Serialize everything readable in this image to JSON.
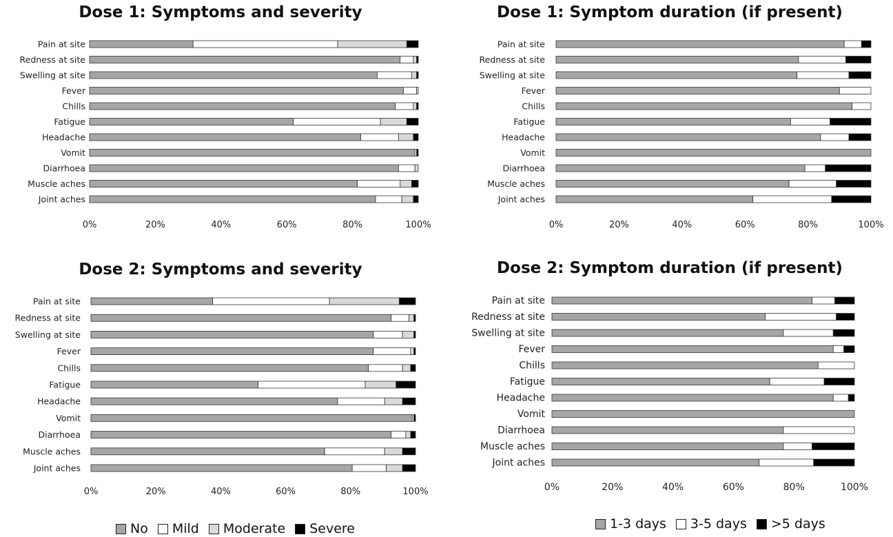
{
  "colors": {
    "No": "#a6a6a6",
    "Mild": "#ffffff",
    "Moderate": "#d9d9d9",
    "Severe": "#000000",
    "1-3 days": "#a6a6a6",
    "3-5 days": "#ffffff",
    ">5 days": "#000000"
  },
  "legends": {
    "severity": [
      "No",
      "Mild",
      "Moderate",
      "Severe"
    ],
    "duration": [
      "1-3 days",
      "3-5 days",
      ">5 days"
    ]
  },
  "chart_data": [
    {
      "id": "d1-severity",
      "type": "bar",
      "orientation": "horizontal",
      "stacked": true,
      "title": "Dose 1: Symptoms and severity",
      "categories": [
        "Pain at site",
        "Redness at site",
        "Swelling at site",
        "Fever",
        "Chills",
        "Fatigue",
        "Headache",
        "Vomit",
        "Diarrhoea",
        "Muscle aches",
        "Joint aches"
      ],
      "series": [
        {
          "name": "No",
          "values": [
            31.5,
            94.5,
            87.5,
            95.5,
            93,
            62,
            82.5,
            99,
            94,
            81.5,
            87
          ]
        },
        {
          "name": "Mild",
          "values": [
            44,
            4,
            10.5,
            4,
            5.5,
            26.5,
            11.5,
            0.5,
            5,
            13,
            8
          ]
        },
        {
          "name": "Moderate",
          "values": [
            21,
            1,
            1.5,
            0.5,
            1,
            8,
            4.5,
            0,
            1,
            3.5,
            3.5
          ]
        },
        {
          "name": "Severe",
          "values": [
            3.5,
            0.5,
            0.5,
            0,
            0.5,
            3.5,
            1.5,
            0.5,
            0,
            2,
            1.5
          ]
        }
      ],
      "xlim": [
        0,
        100
      ],
      "xticks": [
        "0%",
        "20%",
        "40%",
        "60%",
        "80%",
        "100%"
      ],
      "grid": false
    },
    {
      "id": "d1-duration",
      "type": "bar",
      "orientation": "horizontal",
      "stacked": true,
      "title": "Dose 1: Symptom duration (if present)",
      "categories": [
        "Pain at site",
        "Redness at site",
        "Swelling at site",
        "Fever",
        "Chills",
        "Fatigue",
        "Headache",
        "Vomit",
        "Diarrhoea",
        "Muscle aches",
        "Joint aches"
      ],
      "series": [
        {
          "name": "1-3 days",
          "values": [
            91.5,
            77,
            76.5,
            90,
            94,
            74.5,
            84,
            100,
            79,
            74,
            62.5
          ]
        },
        {
          "name": "3-5 days",
          "values": [
            5.5,
            15,
            16.5,
            10,
            6,
            12.5,
            9,
            0,
            6.5,
            15,
            25
          ]
        },
        {
          "name": ">5 days",
          "values": [
            3,
            8,
            7,
            0,
            0,
            13,
            7,
            0,
            14.5,
            11,
            12.5
          ]
        }
      ],
      "xlim": [
        0,
        100
      ],
      "xticks": [
        "0%",
        "20%",
        "40%",
        "60%",
        "80%",
        "100%"
      ],
      "grid": false
    },
    {
      "id": "d2-severity",
      "type": "bar",
      "orientation": "horizontal",
      "stacked": true,
      "title": "Dose 2: Symptoms and severity",
      "categories": [
        "Pain at site",
        "Redness at site",
        "Swelling at site",
        "Fever",
        "Chills",
        "Fatigue",
        "Headache",
        "Vomit",
        "Diarrhoea",
        "Muscle aches",
        "Joint aches"
      ],
      "series": [
        {
          "name": "No",
          "values": [
            37.5,
            92.5,
            87,
            87,
            85.5,
            51.5,
            76,
            99,
            92.5,
            72,
            80.5
          ]
        },
        {
          "name": "Mild",
          "values": [
            36,
            5.5,
            9,
            11.5,
            10.5,
            33,
            14.5,
            0.5,
            4.5,
            18.5,
            10.5
          ]
        },
        {
          "name": "Moderate",
          "values": [
            21.5,
            1.5,
            3.5,
            1,
            2.5,
            9.5,
            5.5,
            0,
            1.5,
            5.5,
            5
          ]
        },
        {
          "name": "Severe",
          "values": [
            5,
            0.5,
            0.5,
            0.5,
            1.5,
            6,
            4,
            0.5,
            1.5,
            4,
            4
          ]
        }
      ],
      "xlim": [
        0,
        100
      ],
      "xticks": [
        "0%",
        "20%",
        "40%",
        "60%",
        "80%",
        "100%"
      ],
      "grid": false
    },
    {
      "id": "d2-duration",
      "type": "bar",
      "orientation": "horizontal",
      "stacked": true,
      "title": "Dose 2: Symptom duration (if present)",
      "categories": [
        "Pain at site",
        "Redness at site",
        "Swelling at site",
        "Fever",
        "Chills",
        "Fatigue",
        "Headache",
        "Vomit",
        "Diarrhoea",
        "Muscle aches",
        "Joint aches"
      ],
      "series": [
        {
          "name": "1-3 days",
          "values": [
            86,
            70.5,
            76.5,
            93,
            88,
            72,
            93,
            100,
            76.5,
            76.5,
            68.5
          ]
        },
        {
          "name": "3-5 days",
          "values": [
            7.5,
            23.5,
            16.5,
            3.5,
            12,
            18,
            5,
            0,
            23.5,
            9.5,
            18
          ]
        },
        {
          "name": ">5 days",
          "values": [
            6.5,
            6,
            7,
            3.5,
            0,
            10,
            2,
            0,
            0,
            14,
            13.5
          ]
        }
      ],
      "xlim": [
        0,
        100
      ],
      "xticks": [
        "0%",
        "20%",
        "40%",
        "60%",
        "80%",
        "100%"
      ],
      "grid": false
    }
  ]
}
